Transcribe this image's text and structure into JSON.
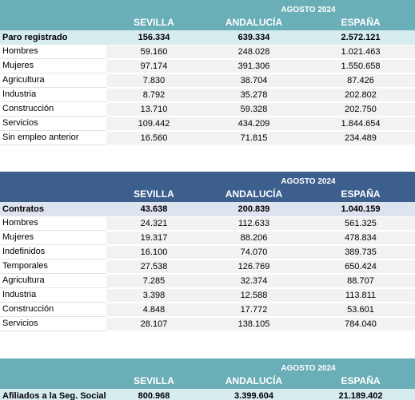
{
  "period": "AGOSTO 2024",
  "columns": [
    "SEVILLA",
    "ANDALUCÍA",
    "ESPAÑA"
  ],
  "paro": {
    "total": {
      "label": "Paro registrado",
      "values": [
        "156.334",
        "639.334",
        "2.572.121"
      ]
    },
    "rows": [
      {
        "label": "Hombres",
        "values": [
          "59.160",
          "248.028",
          "1.021.463"
        ]
      },
      {
        "label": "Mujeres",
        "values": [
          "97.174",
          "391.306",
          "1.550.658"
        ]
      },
      {
        "label": "Agricultura",
        "values": [
          "7.830",
          "38.704",
          "87.426"
        ]
      },
      {
        "label": "Industria",
        "values": [
          "8.792",
          "35.278",
          "202.802"
        ]
      },
      {
        "label": "Construcción",
        "values": [
          "13.710",
          "59.328",
          "202.750"
        ]
      },
      {
        "label": "Servicios",
        "values": [
          "109.442",
          "434.209",
          "1.844.654"
        ]
      },
      {
        "label": "Sin empleo anterior",
        "values": [
          "16.560",
          "71.815",
          "234.489"
        ]
      }
    ]
  },
  "contratos": {
    "total": {
      "label": "Contratos",
      "values": [
        "43.638",
        "200.839",
        "1.040.159"
      ]
    },
    "rows": [
      {
        "label": "Hombres",
        "values": [
          "24.321",
          "112.633",
          "561.325"
        ]
      },
      {
        "label": "Mujeres",
        "values": [
          "19.317",
          "88.206",
          "478.834"
        ]
      },
      {
        "label": "Indefinidos",
        "values": [
          "16.100",
          "74.070",
          "389.735"
        ]
      },
      {
        "label": "Temporales",
        "values": [
          "27.538",
          "126.769",
          "650.424"
        ]
      },
      {
        "label": "Agricultura",
        "values": [
          "7.285",
          "32.374",
          "88.707"
        ]
      },
      {
        "label": "Industria",
        "values": [
          "3.398",
          "12.588",
          "113.811"
        ]
      },
      {
        "label": "Construcción",
        "values": [
          "4.848",
          "17.772",
          "53.601"
        ]
      },
      {
        "label": "Servicios",
        "values": [
          "28.107",
          "138.105",
          "784.040"
        ]
      }
    ]
  },
  "afiliados": {
    "total": {
      "label": "Afiliados a la Seg. Social",
      "values": [
        "800.968",
        "3.399.604",
        "21.189.402"
      ]
    }
  }
}
